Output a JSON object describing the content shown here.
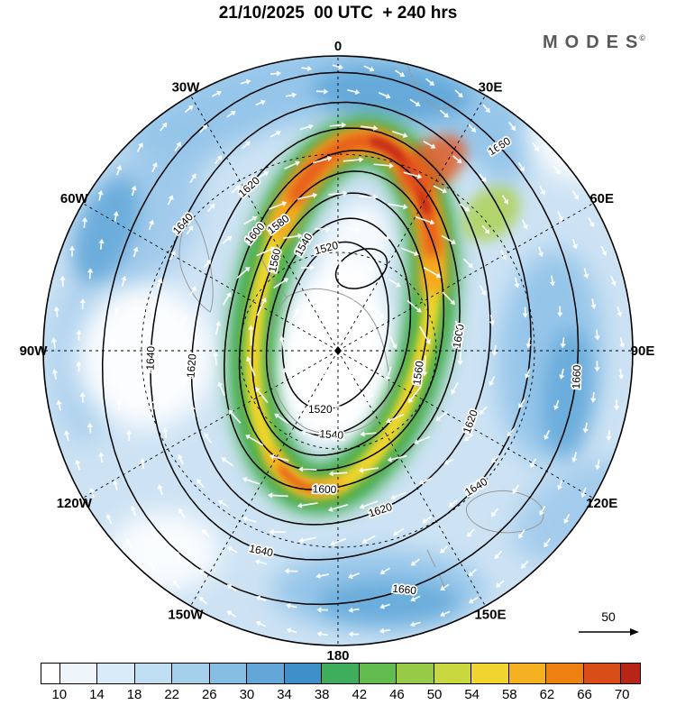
{
  "header": {
    "title": "21/10/2025  00 UTC  + 240 hrs",
    "brand": "MODES",
    "brand_mark": "©"
  },
  "chart_data": {
    "type": "heatmap",
    "projection": "polar-stereographic",
    "title": "21/10/2025  00 UTC  + 240 hrs",
    "longitude_labels": [
      "0",
      "30E",
      "60E",
      "90E",
      "120E",
      "150E",
      "180",
      "150W",
      "120W",
      "90W",
      "60W",
      "30W"
    ],
    "contour_levels": [
      1520,
      1540,
      1560,
      1580,
      1600,
      1620,
      1640,
      1660
    ],
    "contour_interval": 20,
    "contour_color": "#000000",
    "vector_color": "#ffffff",
    "colorbar_ticks": [
      10,
      14,
      18,
      22,
      26,
      30,
      34,
      38,
      42,
      46,
      50,
      54,
      58,
      62,
      66,
      70
    ],
    "colorbar_colors": [
      "#ffffff",
      "#eef6fc",
      "#d9ebf8",
      "#c0def2",
      "#a5cfeb",
      "#86bde2",
      "#62a7d7",
      "#3f8fc9",
      "#3fae5c",
      "#63bc4f",
      "#97ca47",
      "#c9d83e",
      "#f0d52f",
      "#f6b122",
      "#ef8113",
      "#d94e18",
      "#b82517"
    ],
    "wind_reference": {
      "value": "50"
    }
  }
}
